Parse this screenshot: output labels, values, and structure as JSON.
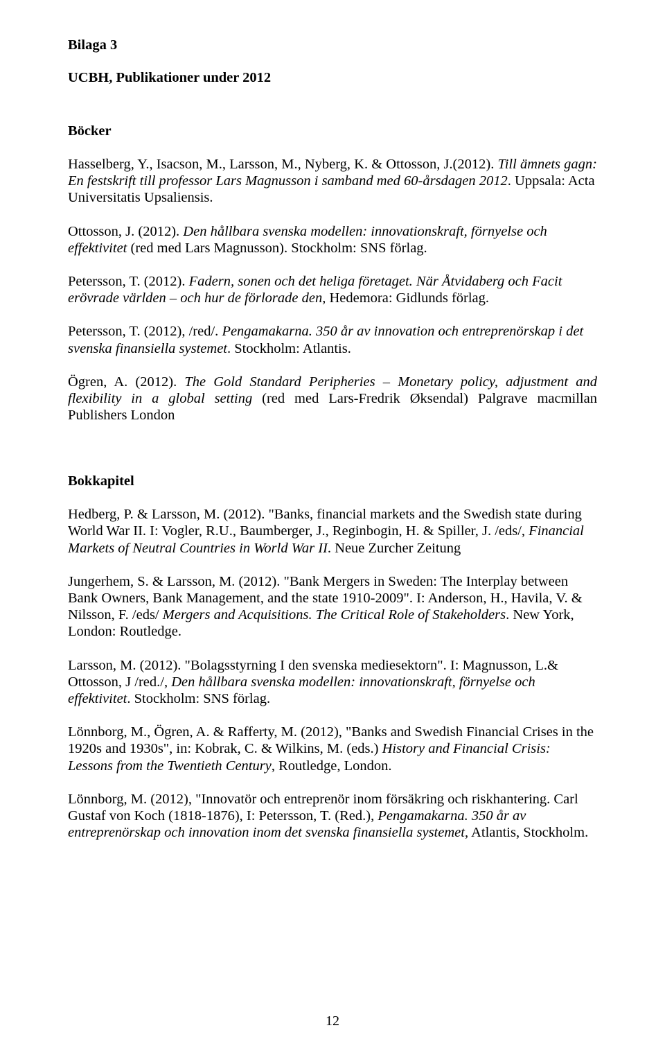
{
  "attachment": "Bilaga 3",
  "title": "UCBH, Publikationer under 2012",
  "section1": "Böcker",
  "p1a": "Hasselberg, Y., Isacson, M., Larsson, M., Nyberg, K. & Ottosson, J.(2012). ",
  "p1b": "Till ämnets gagn: En festskrift till professor Lars Magnusson i samband med 60-årsdagen 2012",
  "p1c": ".  Uppsala:  Acta Universitatis Upsaliensis.",
  "p2a": "Ottosson, J. (2012). ",
  "p2b": "Den hållbara svenska modellen: innovationskraft, förnyelse och effektivitet",
  "p2c": " (red  med Lars Magnusson).  Stockholm:  SNS förlag.",
  "p3a": "Petersson, T. (2012). ",
  "p3b": "Fadern, sonen och det heliga företaget. När Åtvidaberg och Facit erövrade världen – och hur de förlorade den, ",
  "p3c": "Hedemora: Gidlunds förlag.",
  "p4a": "Petersson, T. (2012), /red/. ",
  "p4b": "Pengamakarna. 350 år av innovation och entreprenörskap i det svenska finansiella systemet",
  "p4c": ". Stockholm: Atlantis.",
  "p5a": "Ögren, A. (2012). ",
  "p5b": "The Gold Standard Peripheries – Monetary policy, adjustment and flexibility in a global setting",
  "p5c": " (red med Lars-Fredrik Øksendal) Palgrave macmillan Publishers London",
  "section2": "Bokkapitel",
  "p6a": "Hedberg, P. & Larsson, M. (2012). \"Banks, financial markets and the Swedish state during World War II. I: Vogler, R.U., Baumberger, J., Reginbogin, H. & Spiller, J. /eds/, ",
  "p6b": "Financial Markets of Neutral Countries in World War II",
  "p6c": ". Neue Zurcher Zeitung",
  "p7a": "Jungerhem, S. & Larsson, M. (2012). \"Bank Mergers in Sweden: The Interplay between Bank Owners, Bank Management, and the state 1910-2009\". I: Anderson, H., Havila, V. & Nilsson, F. /eds/ ",
  "p7b": "Mergers and Acquisitions. The Critical Role of Stakeholders",
  "p7c": ". New York, London: Routledge.",
  "p8a": "Larsson, M. (2012). \"Bolagsstyrning I den svenska mediesektorn\". I: Magnusson, L.& Ottosson, J /red./, ",
  "p8b": "Den hållbara svenska modellen: innovationskraft, förnyelse och effektivitet",
  "p8c": ". Stockholm: SNS förlag.",
  "p9a": "Lönnborg, M., Ögren, A. & Rafferty, M. (2012), \"Banks and Swedish Financial Crises in the 1920s and 1930s\", in: Kobrak, C. & Wilkins, M. (eds.) ",
  "p9b": "History and Financial Crisis: Lessons from the Twentieth Century",
  "p9c": ", Routledge, London.",
  "p10a": "Lönnborg, M. (2012), \"Innovatör och entreprenör inom försäkring och riskhantering. Carl Gustaf von Koch (1818-1876), I: Petersson, T. (Red.), ",
  "p10b": "Pengamakarna. 350 år av entreprenörskap och innovation inom det svenska finansiella systemet",
  "p10c": ", Atlantis, Stockholm.",
  "page_number": "12"
}
